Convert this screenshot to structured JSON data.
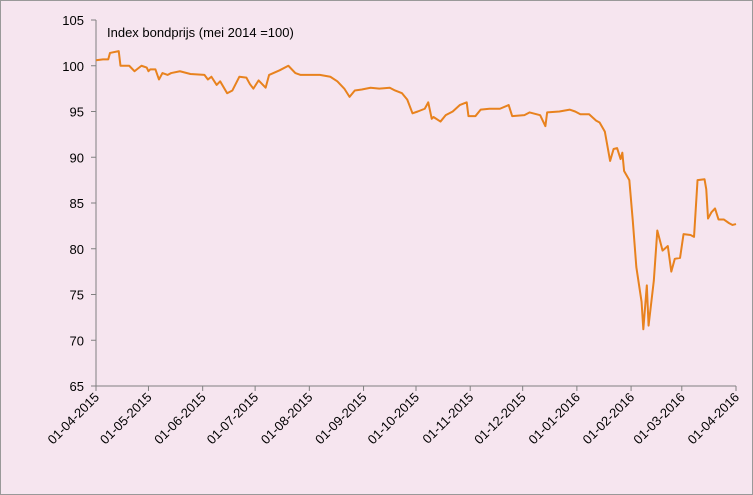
{
  "chart_data": {
    "type": "line",
    "title": "Index bondprijs  (mei 2014 =100)",
    "x": [
      "01-04-2015",
      "05-04-2015",
      "08-04-2015",
      "09-04-2015",
      "14-04-2015",
      "15-04-2015",
      "20-04-2015",
      "23-04-2015",
      "27-04-2015",
      "30-04-2015",
      "01-05-2015",
      "02-05-2015",
      "05-05-2015",
      "07-05-2015",
      "09-05-2015",
      "12-05-2015",
      "14-05-2015",
      "19-05-2015",
      "25-05-2015",
      "02-06-2015",
      "04-06-2015",
      "06-06-2015",
      "09-06-2015",
      "11-06-2015",
      "15-06-2015",
      "18-06-2015",
      "22-06-2015",
      "26-06-2015",
      "28-06-2015",
      "30-06-2015",
      "03-07-2015",
      "07-07-2015",
      "09-07-2015",
      "15-07-2015",
      "20-07-2015",
      "24-07-2015",
      "27-07-2015",
      "07-08-2015",
      "13-08-2015",
      "17-08-2015",
      "21-08-2015",
      "24-08-2015",
      "27-08-2015",
      "31-08-2015",
      "05-09-2015",
      "10-09-2015",
      "16-09-2015",
      "19-09-2015",
      "23-09-2015",
      "26-09-2015",
      "29-09-2015",
      "02-10-2015",
      "06-10-2015",
      "08-10-2015",
      "10-10-2015",
      "11-10-2015",
      "15-10-2015",
      "18-10-2015",
      "22-10-2015",
      "26-10-2015",
      "30-10-2015",
      "31-10-2015",
      "04-11-2015",
      "07-11-2015",
      "12-11-2015",
      "18-11-2015",
      "23-11-2015",
      "25-11-2015",
      "02-12-2015",
      "05-12-2015",
      "11-12-2015",
      "14-12-2015",
      "15-12-2015",
      "22-12-2015",
      "28-12-2015",
      "31-12-2015",
      "03-01-2016",
      "08-01-2016",
      "12-01-2016",
      "14-01-2016",
      "17-01-2016",
      "20-01-2016",
      "22-01-2016",
      "24-01-2016",
      "26-01-2016",
      "27-01-2016",
      "28-01-2016",
      "31-01-2016",
      "02-02-2016",
      "04-02-2016",
      "07-02-2016",
      "08-02-2016",
      "10-02-2016",
      "11-02-2016",
      "14-02-2016",
      "16-02-2016",
      "19-02-2016",
      "22-02-2016",
      "24-02-2016",
      "26-02-2016",
      "29-02-2016",
      "02-03-2016",
      "06-03-2016",
      "08-03-2016",
      "10-03-2016",
      "14-03-2016",
      "15-03-2016",
      "16-03-2016",
      "18-03-2016",
      "20-03-2016",
      "22-03-2016",
      "25-03-2016",
      "28-03-2016",
      "30-03-2016",
      "01-04-2016"
    ],
    "series": [
      {
        "name": "Index bondprijs",
        "color": "#e8821e",
        "values": [
          100.6,
          100.7,
          100.7,
          101.4,
          101.6,
          100.0,
          100.0,
          99.4,
          100.0,
          99.8,
          99.4,
          99.6,
          99.6,
          98.5,
          99.2,
          99.0,
          99.2,
          99.4,
          99.1,
          99.0,
          98.5,
          98.8,
          97.9,
          98.3,
          97.0,
          97.3,
          98.8,
          98.7,
          98.0,
          97.5,
          98.4,
          97.6,
          99.0,
          99.5,
          100.0,
          99.2,
          99.0,
          99.0,
          98.8,
          98.3,
          97.5,
          96.6,
          97.3,
          97.4,
          97.6,
          97.5,
          97.6,
          97.3,
          97.0,
          96.3,
          94.8,
          95.0,
          95.3,
          96.0,
          94.2,
          94.4,
          93.9,
          94.6,
          95.0,
          95.7,
          96.0,
          94.5,
          94.5,
          95.2,
          95.3,
          95.3,
          95.7,
          94.5,
          94.6,
          94.9,
          94.6,
          93.4,
          94.9,
          95.0,
          95.2,
          95.0,
          94.7,
          94.7,
          94.0,
          93.8,
          92.8,
          89.6,
          90.9,
          91.0,
          89.8,
          90.5,
          88.5,
          87.5,
          83.0,
          78.0,
          74.2,
          71.2,
          76.0,
          71.6,
          76.5,
          82.0,
          79.8,
          80.3,
          77.5,
          78.9,
          79.0,
          81.6,
          81.5,
          81.3,
          87.5,
          87.6,
          86.5,
          83.3,
          84.0,
          84.4,
          83.2,
          83.2,
          82.8,
          82.6,
          82.7
        ]
      }
    ],
    "xlim": [
      "01-04-2015",
      "01-04-2016"
    ],
    "xticks": [
      "01-04-2015",
      "01-05-2015",
      "01-06-2015",
      "01-07-2015",
      "01-08-2015",
      "01-09-2015",
      "01-10-2015",
      "01-11-2015",
      "01-12-2015",
      "01-01-2016",
      "01-02-2016",
      "01-03-2016",
      "01-04-2016"
    ],
    "ylim": [
      65,
      105
    ],
    "yticks": [
      65,
      70,
      75,
      80,
      85,
      90,
      95,
      100,
      105
    ]
  }
}
